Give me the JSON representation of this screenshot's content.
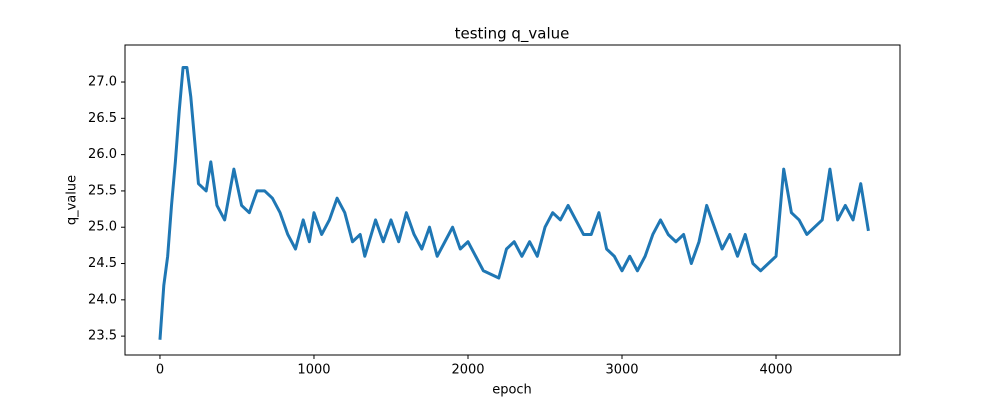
{
  "chart_data": {
    "type": "line",
    "title": "testing q_value",
    "x_label": "epoch",
    "y_label": "q_value",
    "x": [
      0,
      25,
      50,
      75,
      100,
      125,
      150,
      175,
      200,
      225,
      250,
      300,
      330,
      370,
      420,
      480,
      530,
      580,
      630,
      680,
      730,
      780,
      830,
      880,
      930,
      970,
      1000,
      1050,
      1100,
      1150,
      1200,
      1250,
      1300,
      1330,
      1400,
      1450,
      1500,
      1550,
      1600,
      1650,
      1700,
      1750,
      1800,
      1850,
      1900,
      1950,
      2000,
      2050,
      2100,
      2150,
      2200,
      2250,
      2300,
      2350,
      2400,
      2450,
      2500,
      2550,
      2600,
      2650,
      2700,
      2750,
      2800,
      2850,
      2900,
      2950,
      3000,
      3050,
      3100,
      3150,
      3200,
      3250,
      3300,
      3350,
      3400,
      3450,
      3500,
      3550,
      3600,
      3650,
      3700,
      3750,
      3800,
      3850,
      3900,
      3950,
      4000,
      4050,
      4100,
      4150,
      4200,
      4250,
      4300,
      4350,
      4400,
      4450,
      4500,
      4550,
      4600
    ],
    "series": [
      {
        "name": "q_value",
        "color": "#1f77b4",
        "values": [
          23.45,
          24.2,
          24.6,
          25.3,
          25.9,
          26.6,
          27.2,
          27.2,
          26.8,
          26.2,
          25.6,
          25.5,
          25.9,
          25.3,
          25.1,
          25.8,
          25.3,
          25.2,
          25.5,
          25.5,
          25.4,
          25.2,
          24.9,
          24.7,
          25.1,
          24.8,
          25.2,
          24.9,
          25.1,
          25.4,
          25.2,
          24.8,
          24.9,
          24.6,
          25.1,
          24.8,
          25.1,
          24.8,
          25.2,
          24.9,
          24.7,
          25.0,
          24.6,
          24.8,
          25.0,
          24.7,
          24.8,
          24.6,
          24.4,
          24.35,
          24.3,
          24.7,
          24.8,
          24.6,
          24.8,
          24.6,
          25.0,
          25.2,
          25.1,
          25.3,
          25.1,
          24.9,
          24.9,
          25.2,
          24.7,
          24.6,
          24.4,
          24.6,
          24.4,
          24.6,
          24.9,
          25.1,
          24.9,
          24.8,
          24.9,
          24.5,
          24.8,
          25.3,
          25.0,
          24.7,
          24.9,
          24.6,
          24.9,
          24.5,
          24.4,
          24.5,
          24.6,
          25.8,
          25.2,
          25.1,
          24.9,
          25.0,
          25.1,
          25.8,
          25.1,
          25.3,
          25.1,
          25.6,
          24.95
        ]
      }
    ],
    "xlim": [
      -227,
      4805
    ],
    "ylim": [
      23.24,
      27.51
    ],
    "xticks": [
      0,
      1000,
      2000,
      3000,
      4000
    ],
    "yticks": [
      23.5,
      {
        "value": 24,
        "label": "24.0"
      },
      24.5,
      {
        "value": 25,
        "label": "25.0"
      },
      25.5,
      {
        "value": 26,
        "label": "26.0"
      },
      26.5,
      {
        "value": 27,
        "label": "27.0"
      }
    ]
  }
}
